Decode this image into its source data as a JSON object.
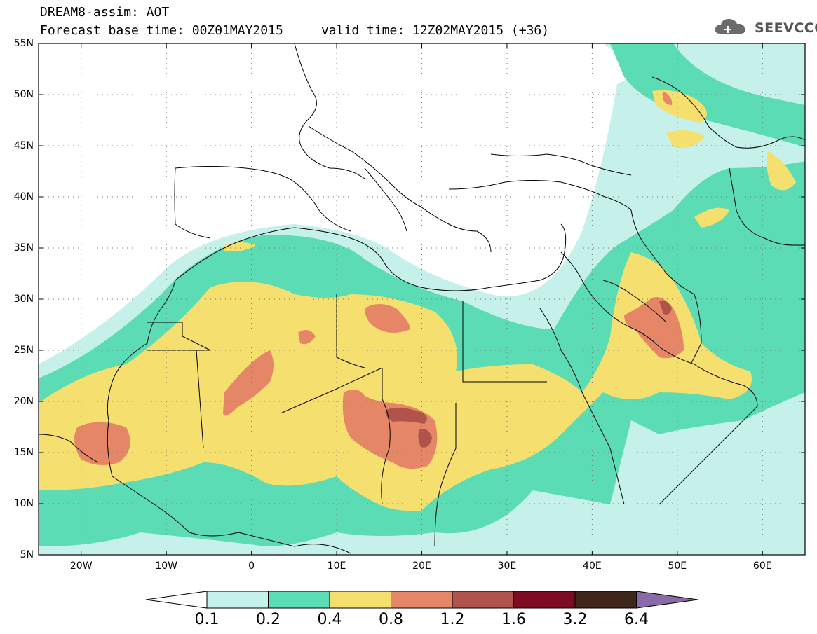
{
  "title": {
    "line1": "DREAM8-assim: AOT",
    "line2": "Forecast base time: 00Z01MAY2015     valid time: 12Z02MAY2015 (+36)"
  },
  "logo": {
    "text": "SEEVCCC",
    "icon": "cloud-icon"
  },
  "map": {
    "lon_range": [
      -25,
      65
    ],
    "lat_range": [
      5,
      55
    ],
    "grid": true,
    "lat_labels": [
      "55N",
      "50N",
      "45N",
      "40N",
      "35N",
      "30N",
      "25N",
      "20N",
      "15N",
      "10N",
      "5N"
    ],
    "lat_values": [
      55,
      50,
      45,
      40,
      35,
      30,
      25,
      20,
      15,
      10,
      5
    ],
    "lon_labels": [
      "20W",
      "10W",
      "0",
      "10E",
      "20E",
      "30E",
      "40E",
      "50E",
      "60E"
    ],
    "lon_values": [
      -20,
      -10,
      0,
      10,
      20,
      30,
      40,
      50,
      60
    ]
  },
  "colorbar": {
    "labels": [
      "0.1",
      "0.2",
      "0.4",
      "0.8",
      "1.2",
      "1.6",
      "3.2",
      "6.4"
    ],
    "colors": [
      "#c6f0ea",
      "#5cdcb4",
      "#f5df6e",
      "#e58767",
      "#b0534a",
      "#7d0b22",
      "#3e2719",
      "#8b6aa8"
    ]
  }
}
